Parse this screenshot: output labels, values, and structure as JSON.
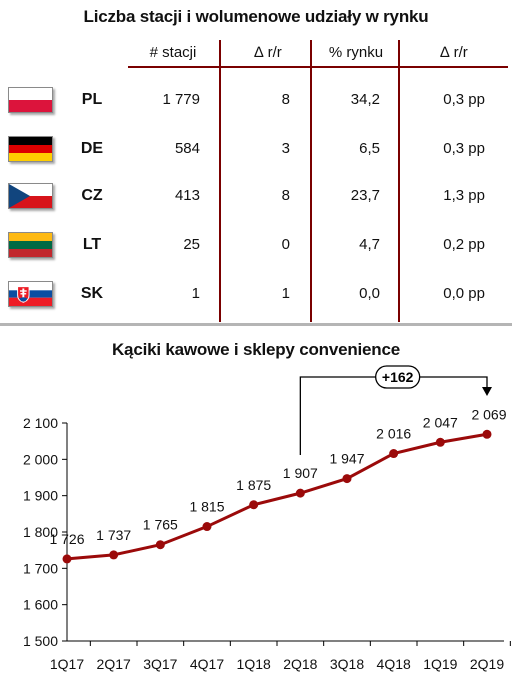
{
  "table": {
    "title": "Liczba stacji i wolumenowe udziały w rynku",
    "headers": [
      "# stacji",
      "∆ r/r",
      "% rynku",
      "∆ r/r"
    ],
    "rows": [
      {
        "code": "PL",
        "flag": "poland-flag-icon",
        "stations": "1 779",
        "stations_change": "8",
        "share": "34,2",
        "share_change": "0,3 pp"
      },
      {
        "code": "DE",
        "flag": "germany-flag-icon",
        "stations": "584",
        "stations_change": "3",
        "share": "6,5",
        "share_change": "0,3 pp"
      },
      {
        "code": "CZ",
        "flag": "czech-flag-icon",
        "stations": "413",
        "stations_change": "8",
        "share": "23,7",
        "share_change": "1,3 pp"
      },
      {
        "code": "LT",
        "flag": "lithuania-flag-icon",
        "stations": "25",
        "stations_change": "0",
        "share": "4,7",
        "share_change": "0,2 pp"
      },
      {
        "code": "SK",
        "flag": "slovakia-flag-icon",
        "stations": "1",
        "stations_change": "1",
        "share": "0,0",
        "share_change": "0,0 pp"
      }
    ]
  },
  "colors": {
    "line": "#9b0a0a",
    "table_lines": "#7a0000",
    "separator": "#b5b5b5"
  },
  "chart_data": {
    "type": "line",
    "title": "Kąciki kawowe i sklepy convenience",
    "categories": [
      "1Q17",
      "2Q17",
      "3Q17",
      "4Q17",
      "1Q18",
      "2Q18",
      "3Q18",
      "4Q18",
      "1Q19",
      "2Q19"
    ],
    "values": [
      1726,
      1737,
      1765,
      1815,
      1875,
      1907,
      1947,
      2016,
      2047,
      2069
    ],
    "data_labels": [
      "1 726",
      "1 737",
      "1 765",
      "1 815",
      "1 875",
      "1 907",
      "1 947",
      "2 016",
      "2 047",
      "2 069"
    ],
    "y_ticks": [
      1500,
      1600,
      1700,
      1800,
      1900,
      2000,
      2100
    ],
    "y_tick_labels": [
      "1 500",
      "1 600",
      "1 700",
      "1 800",
      "1 900",
      "2 000",
      "2 100"
    ],
    "ylim": [
      1500,
      2100
    ],
    "grid": false,
    "annotation": {
      "text": "+162",
      "from": "2Q18",
      "to": "2Q19"
    }
  }
}
